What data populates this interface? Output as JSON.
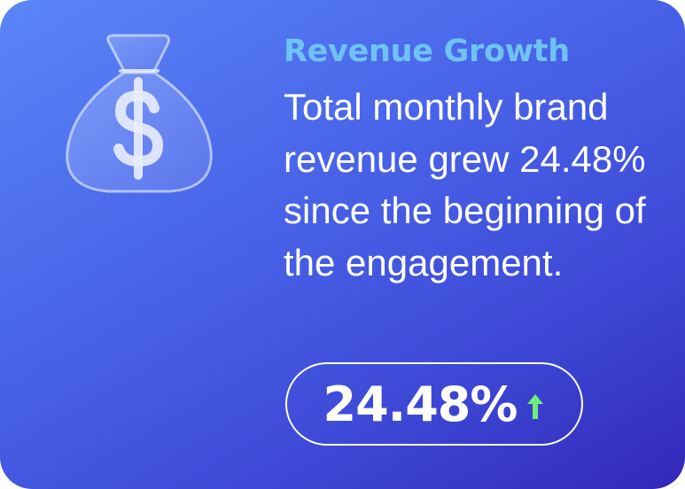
{
  "card": {
    "title": "Revenue Growth",
    "description": "Total monthly brand revenue grew 24.48% since the beginning of the engagement.",
    "metric": {
      "value": "24.48%",
      "trend": "up",
      "trend_color": "#6cf07a"
    },
    "icon": "money-bag-dollar-icon",
    "colors": {
      "title": "#6fc3f4",
      "gradient_start": "#5a86f7",
      "gradient_end": "#3327b8"
    }
  }
}
